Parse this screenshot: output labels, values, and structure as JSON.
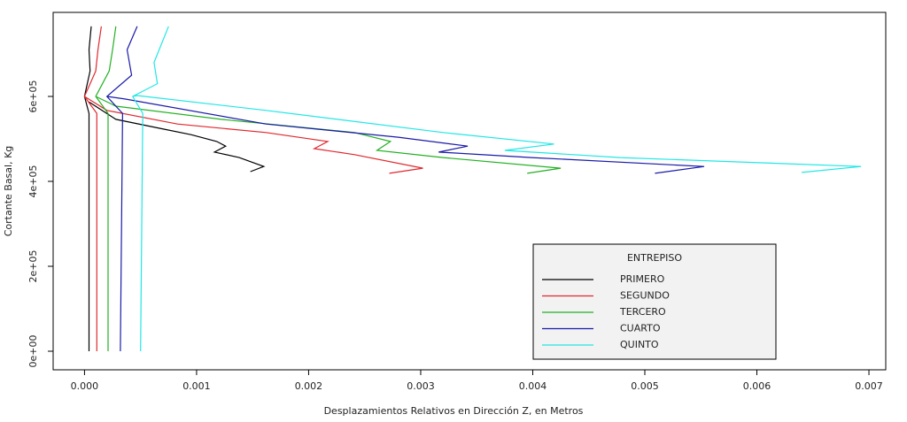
{
  "chart_data": {
    "type": "line",
    "x_label": "Desplazamientos Relativos en Dirección Z, en Metros",
    "y_label": "Cortante Basal, Kg",
    "legend_title": "ENTREPISO",
    "legend_position": "lower right",
    "xlim": [
      -0.00028,
      0.00715
    ],
    "ylim": [
      -43750,
      797900
    ],
    "xticks": [
      {
        "value": 0,
        "label": "0.000"
      },
      {
        "value": 0.001,
        "label": "0.001"
      },
      {
        "value": 0.002,
        "label": "0.002"
      },
      {
        "value": 0.003,
        "label": "0.003"
      },
      {
        "value": 0.004,
        "label": "0.004"
      },
      {
        "value": 0.005,
        "label": "0.005"
      },
      {
        "value": 0.006,
        "label": "0.006"
      },
      {
        "value": 0.007,
        "label": "0.007"
      }
    ],
    "yticks": [
      {
        "value": 0,
        "label": "0e+00"
      },
      {
        "value": 200000,
        "label": "2e+05"
      },
      {
        "value": 400000,
        "label": "4e+05"
      },
      {
        "value": 600000,
        "label": "6e+05"
      }
    ],
    "series": [
      {
        "name": "PRIMERO",
        "color": "#000000",
        "x": [
          4e-05,
          4e-05,
          0.0,
          5e-05,
          4e-05,
          6e-05,
          null,
          4e-05,
          0.00028,
          0.00067,
          0.00095,
          0.00118,
          0.00126,
          0.00116,
          0.00138,
          0.0016,
          0.00148
        ],
        "values": [
          0,
          560000,
          600000,
          660000,
          710000,
          765000,
          null,
          587000,
          546000,
          525000,
          510000,
          494000,
          483000,
          469000,
          456000,
          435000,
          423000
        ]
      },
      {
        "name": "SEGUNDO",
        "color": "#e0282d",
        "x": [
          0.00011,
          0.00011,
          0.0,
          0.0001,
          0.00012,
          0.00015,
          null,
          0.0,
          0.0002,
          0.00083,
          0.00162,
          0.00217,
          0.00205,
          0.00241,
          0.00302,
          0.00272
        ],
        "values": [
          0,
          560000,
          600000,
          660000,
          710000,
          765000,
          null,
          600000,
          567000,
          535000,
          515000,
          494000,
          477000,
          463000,
          431000,
          419000
        ]
      },
      {
        "name": "TERCERO",
        "color": "#22b022",
        "x": [
          0.00021,
          0.00021,
          0.0001,
          0.00022,
          0.00025,
          0.00028,
          null,
          0.0001,
          0.00028,
          0.00122,
          0.00241,
          0.00273,
          0.00261,
          0.0032,
          0.00425,
          0.00395
        ],
        "values": [
          0,
          560000,
          600000,
          660000,
          710000,
          765000,
          null,
          600000,
          577000,
          546000,
          515000,
          494000,
          473000,
          456000,
          431000,
          419000
        ]
      },
      {
        "name": "CUARTO",
        "color": "#1a1aa8",
        "x": [
          0.00032,
          0.00034,
          0.0002,
          0.00042,
          0.00038,
          0.00047,
          null,
          0.0002,
          0.00036,
          0.00162,
          0.0028,
          0.00342,
          0.00316,
          0.00399,
          0.00553,
          0.00509
        ],
        "values": [
          0,
          560000,
          600000,
          650000,
          710000,
          765000,
          null,
          600000,
          594000,
          535000,
          504000,
          483000,
          469000,
          456000,
          435000,
          419000
        ]
      },
      {
        "name": "QUINTO",
        "color": "#22e6e6",
        "x": [
          0.0005,
          0.00052,
          0.00043,
          0.00065,
          0.00062,
          0.00075,
          null,
          0.00043,
          0.00047,
          0.00162,
          0.0032,
          0.00419,
          0.00375,
          0.00478,
          0.00693,
          0.0064
        ],
        "values": [
          0,
          560000,
          600000,
          630000,
          680000,
          765000,
          null,
          600000,
          602000,
          567000,
          515000,
          488000,
          473000,
          456000,
          435000,
          421000
        ]
      }
    ]
  }
}
